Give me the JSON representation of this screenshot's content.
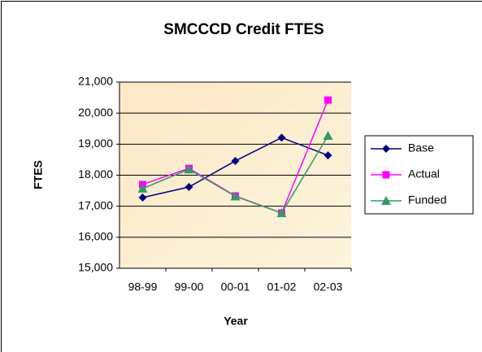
{
  "chart_data": {
    "type": "line",
    "title": "SMCCCD Credit FTES",
    "x_label": "Year",
    "y_label": "FTES",
    "categories": [
      "98-99",
      "99-00",
      "00-01",
      "01-02",
      "02-03"
    ],
    "series": [
      {
        "name": "Base",
        "color": "#000080",
        "marker": "diamond",
        "values": [
          17280,
          17620,
          18460,
          19210,
          18640
        ]
      },
      {
        "name": "Actual",
        "color": "#ff00ff",
        "marker": "square",
        "values": [
          17700,
          18220,
          17330,
          16780,
          20420
        ]
      },
      {
        "name": "Funded",
        "color": "#339966",
        "marker": "triangle",
        "values": [
          17570,
          18190,
          17320,
          16780,
          19270
        ]
      }
    ],
    "ylim": [
      15000,
      21000
    ],
    "yticks": [
      {
        "value": 15000,
        "label": "15,000"
      },
      {
        "value": 16000,
        "label": "16,000"
      },
      {
        "value": 17000,
        "label": "17,000"
      },
      {
        "value": 18000,
        "label": "18,000"
      },
      {
        "value": 19000,
        "label": "19,000"
      },
      {
        "value": 20000,
        "label": "20,000"
      },
      {
        "value": 21000,
        "label": "21,000"
      }
    ],
    "grid": true,
    "legend": "right"
  }
}
